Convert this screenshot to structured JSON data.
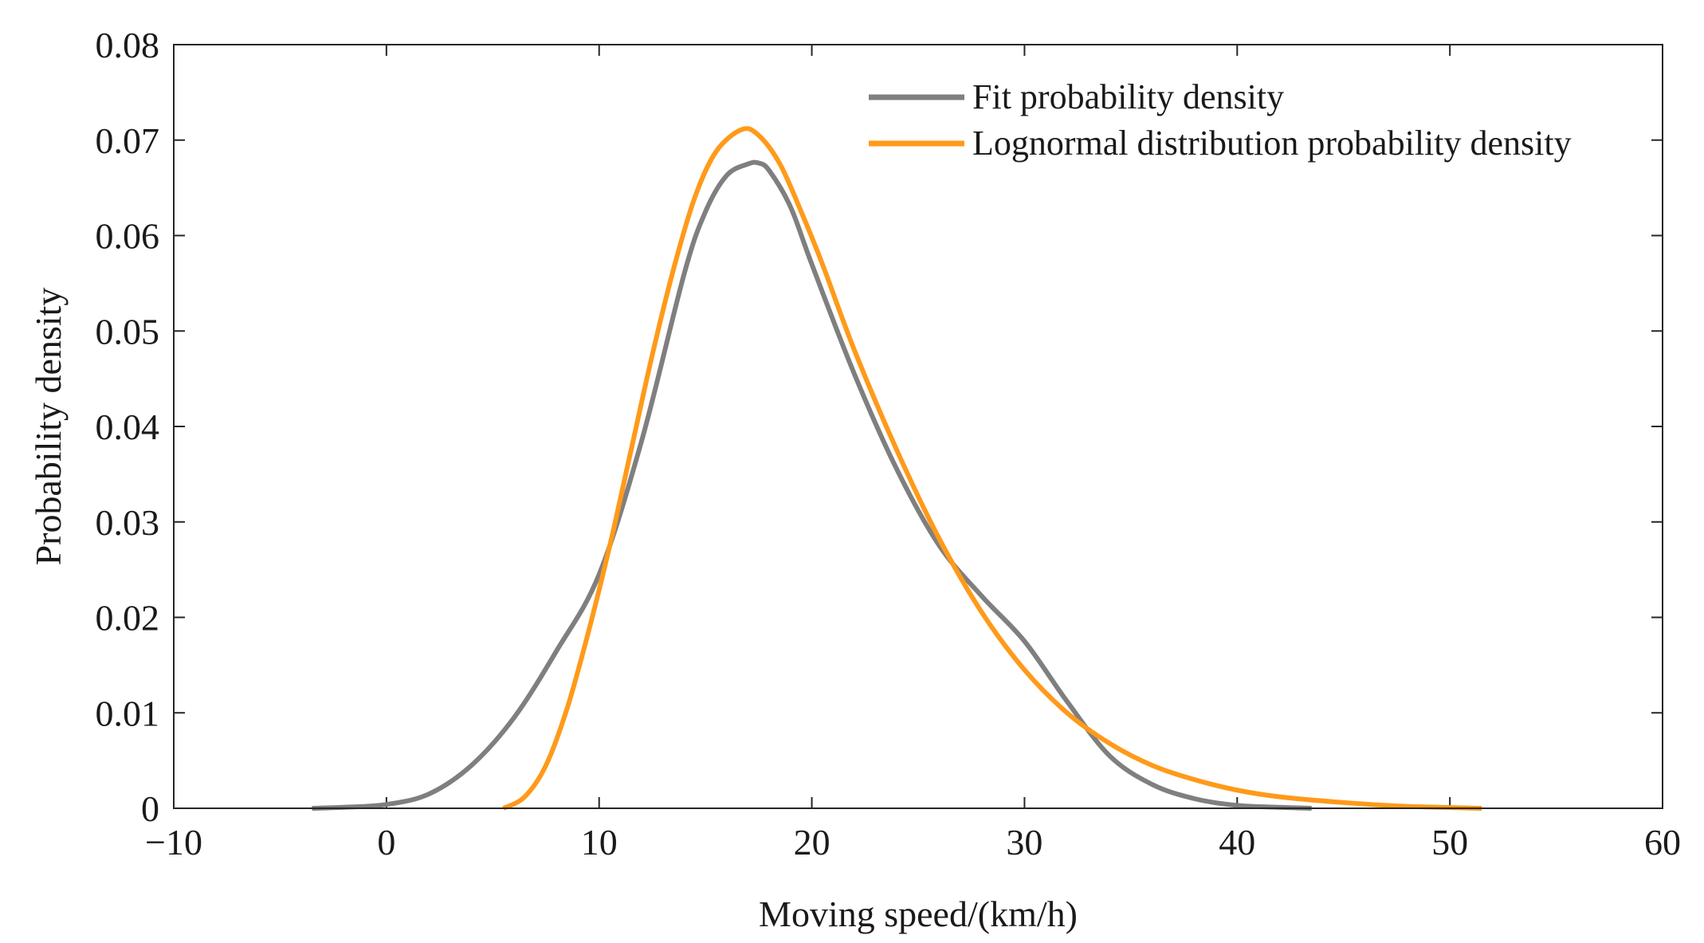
{
  "chart_data": {
    "type": "line",
    "title": "",
    "xlabel": "Moving speed/(km/h)",
    "ylabel": "Probability density",
    "xlim": [
      -10,
      60
    ],
    "ylim": [
      0,
      0.08
    ],
    "xticks": [
      -10,
      0,
      10,
      20,
      30,
      40,
      50,
      60
    ],
    "xtick_labels": [
      "−10",
      "0",
      "10",
      "20",
      "30",
      "40",
      "50",
      "60"
    ],
    "yticks": [
      0,
      0.01,
      0.02,
      0.03,
      0.04,
      0.05,
      0.06,
      0.07,
      0.08
    ],
    "ytick_labels": [
      "0",
      "0.01",
      "0.02",
      "0.03",
      "0.04",
      "0.05",
      "0.06",
      "0.07",
      "0.08"
    ],
    "grid": false,
    "legend_position": "top-right",
    "series": [
      {
        "name": "Fit probability density",
        "color": "#7f7f7f",
        "x": [
          -3.5,
          -2,
          0,
          2,
          4,
          6,
          8,
          10,
          12,
          14,
          15,
          16,
          17,
          17.5,
          18,
          19,
          20,
          22,
          24,
          26,
          28,
          30,
          32,
          34,
          36,
          38,
          40,
          42,
          43.5
        ],
        "y": [
          0.0,
          0.0001,
          0.0004,
          0.0015,
          0.0045,
          0.0095,
          0.0165,
          0.0245,
          0.0385,
          0.056,
          0.0625,
          0.0663,
          0.0675,
          0.0676,
          0.0668,
          0.063,
          0.057,
          0.0455,
          0.0355,
          0.0275,
          0.0222,
          0.0175,
          0.0112,
          0.0055,
          0.0025,
          0.001,
          0.0003,
          0.0001,
          0.0
        ]
      },
      {
        "name": "Lognormal distribution probability density",
        "color": "#ff9a1a",
        "x": [
          5.5,
          6.5,
          7.5,
          8.5,
          9.5,
          10.5,
          11.5,
          12.5,
          13.5,
          14.5,
          15.5,
          16.7,
          17.5,
          18.5,
          19.5,
          20.5,
          22,
          24,
          26,
          28,
          30,
          32,
          34,
          36,
          38,
          40,
          42,
          45,
          48,
          51.5
        ],
        "y": [
          0.0,
          0.0012,
          0.0045,
          0.0105,
          0.0185,
          0.0275,
          0.0375,
          0.0475,
          0.0565,
          0.064,
          0.0688,
          0.0711,
          0.0705,
          0.0675,
          0.0625,
          0.057,
          0.048,
          0.0375,
          0.0282,
          0.0205,
          0.0145,
          0.01,
          0.0068,
          0.0045,
          0.003,
          0.0019,
          0.0012,
          0.0006,
          0.0002,
          0.0
        ]
      }
    ]
  }
}
